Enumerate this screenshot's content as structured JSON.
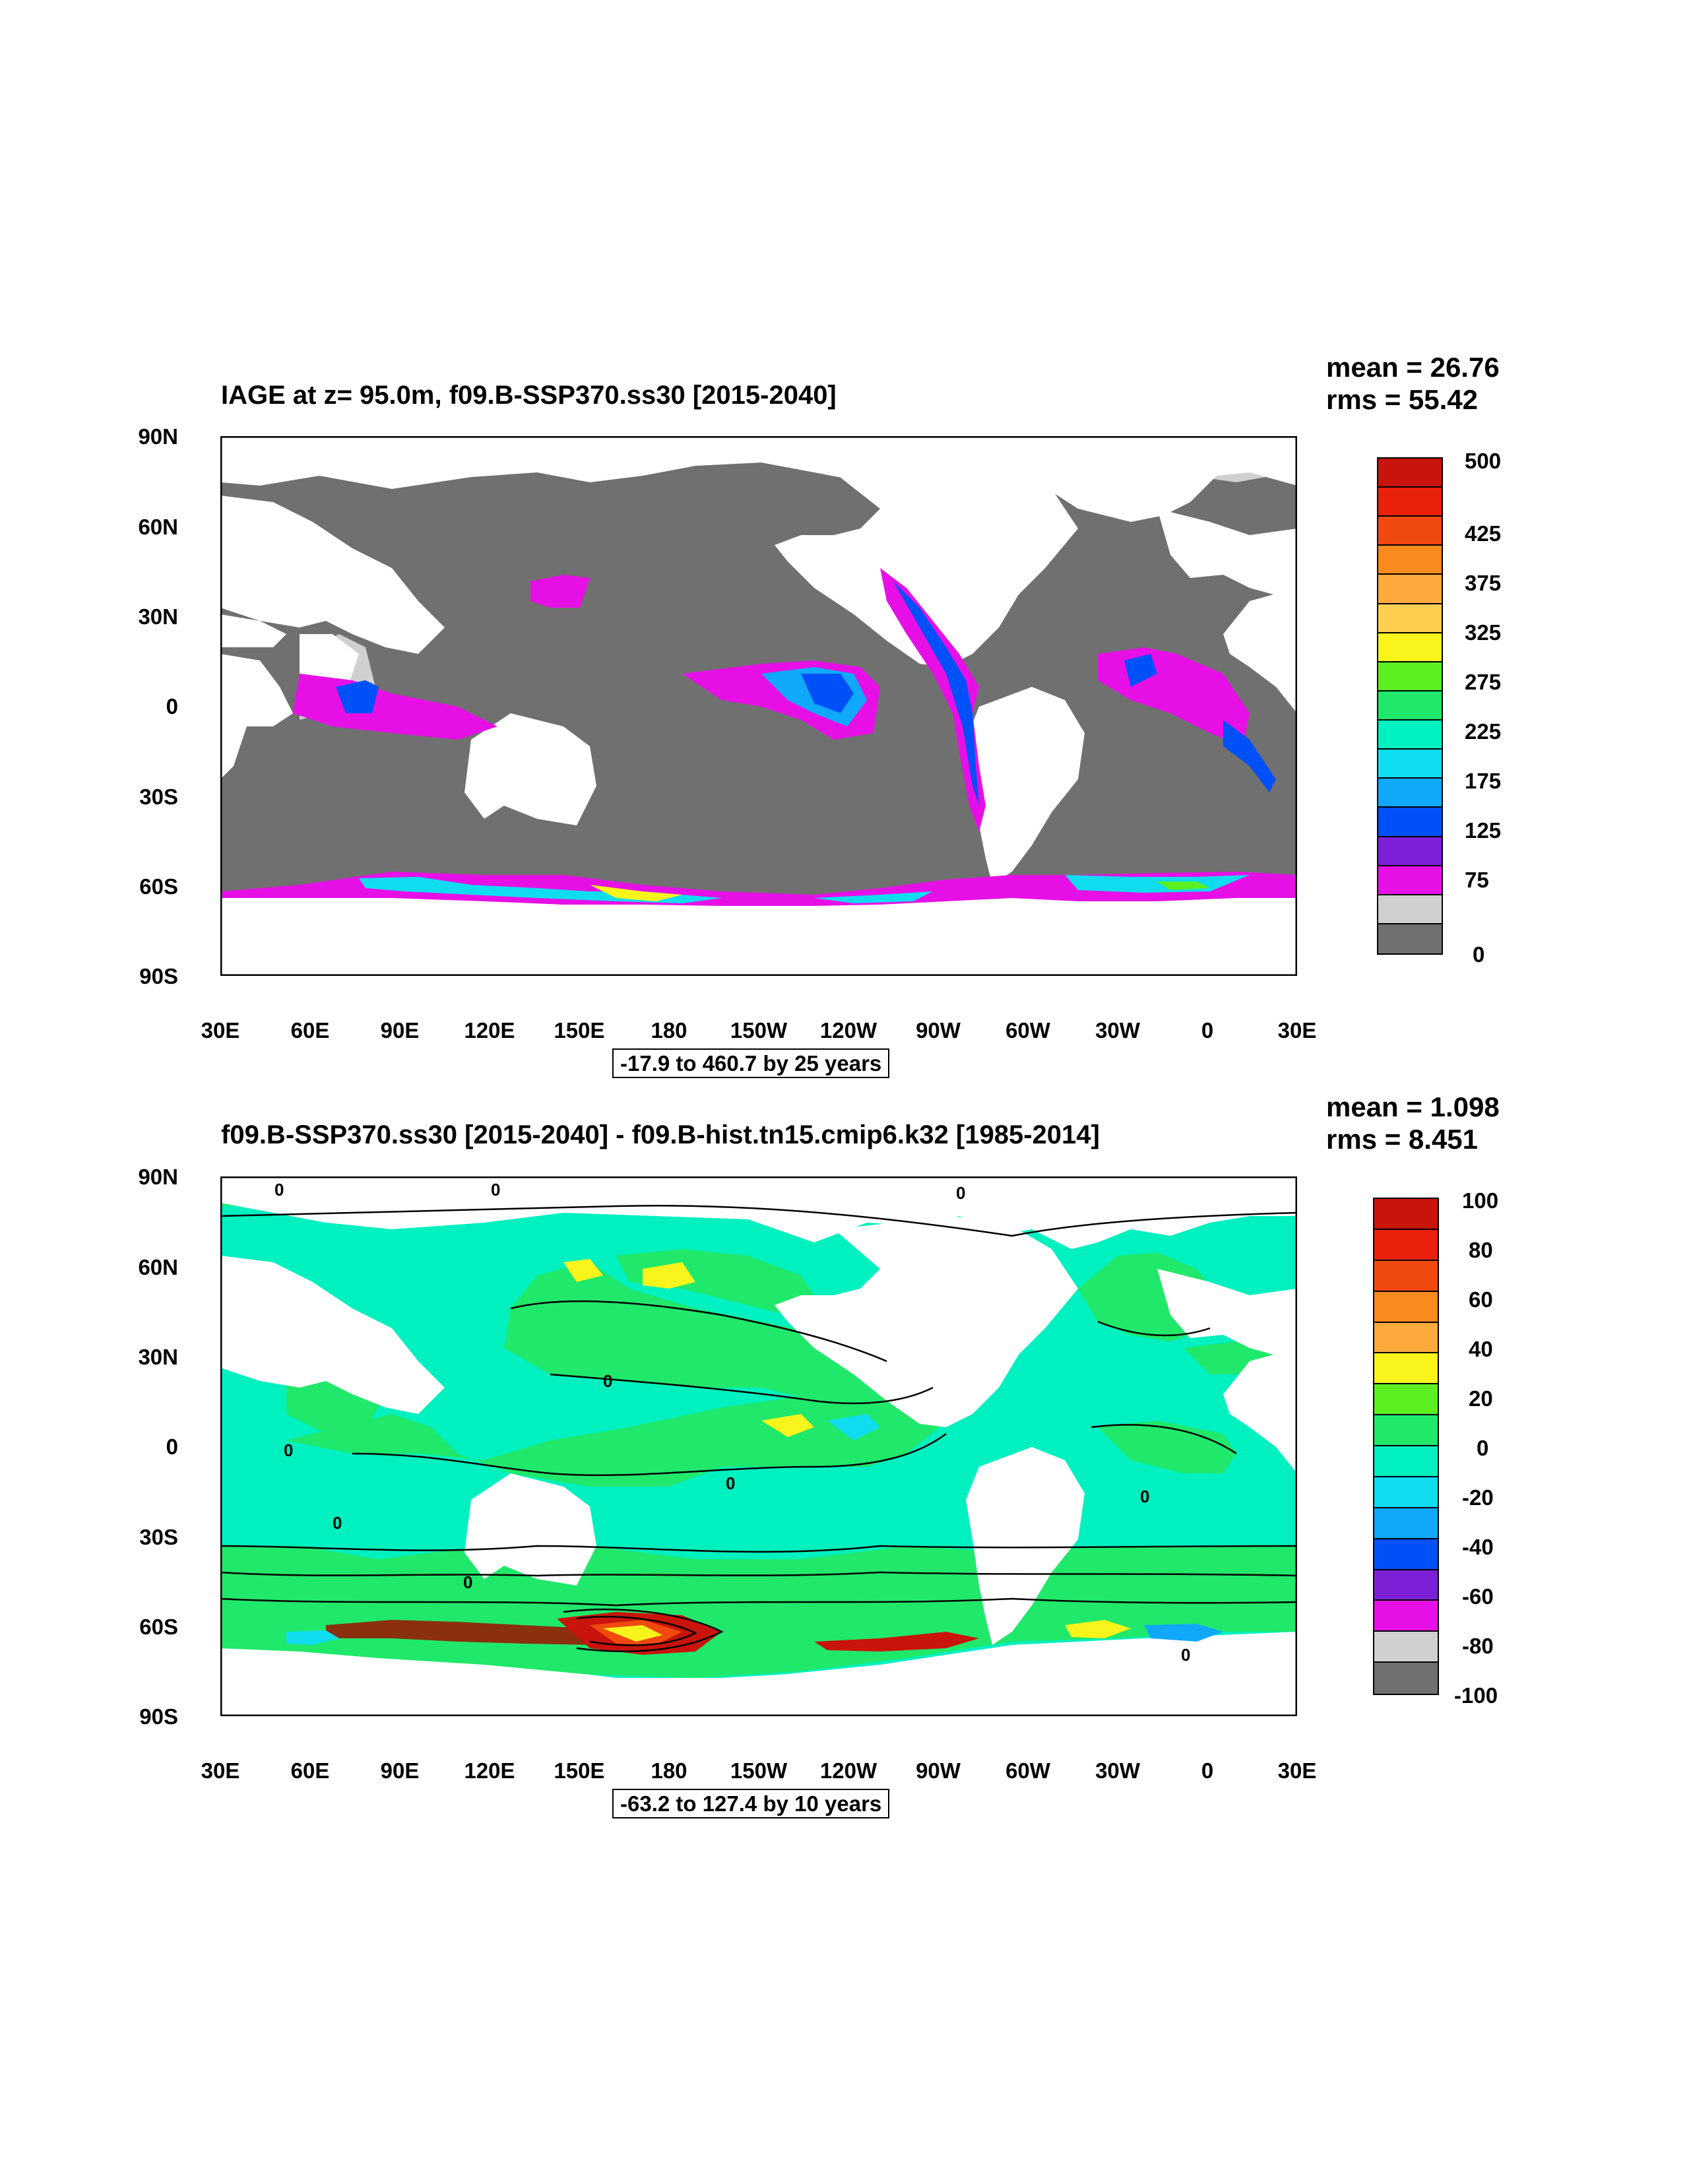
{
  "panels": [
    {
      "title": "IAGE at z=  95.0m, f09.B-SSP370.ss30 [2015-2040]",
      "mean": "mean = 26.76",
      "rms": "rms = 55.42",
      "range_note": "-17.9 to 460.7 by 25 years",
      "lat_labels": [
        "90N",
        "60N",
        "30N",
        "0",
        "30S",
        "60S",
        "90S"
      ],
      "lon_labels": [
        "30E",
        "60E",
        "90E",
        "120E",
        "150E",
        "180",
        "150W",
        "120W",
        "90W",
        "60W",
        "30W",
        "0",
        "30E"
      ],
      "colorbar_labels": [
        "500",
        "425",
        "375",
        "325",
        "275",
        "225",
        "175",
        "125",
        "75",
        "0"
      ],
      "colorbar_colors": [
        "#c8140c",
        "#e8200c",
        "#f04a10",
        "#f88a1e",
        "#fcaa3c",
        "#fcd04e",
        "#f8f41c",
        "#5cf020",
        "#20e86a",
        "#00f0c0",
        "#10dcf0",
        "#10a8f8",
        "#0050f8",
        "#7c20d8",
        "#e610e6",
        "#d0d0d0",
        "#707070"
      ]
    },
    {
      "title": "f09.B-SSP370.ss30 [2015-2040] - f09.B-hist.tn15.cmip6.k32 [1985-2014]",
      "mean": "mean = 1.098",
      "rms": "rms = 8.451",
      "range_note": "-63.2 to 127.4 by 10 years",
      "lat_labels": [
        "90N",
        "60N",
        "30N",
        "0",
        "30S",
        "60S",
        "90S"
      ],
      "lon_labels": [
        "30E",
        "60E",
        "90E",
        "120E",
        "150E",
        "180",
        "150W",
        "120W",
        "90W",
        "60W",
        "30W",
        "0",
        "30E"
      ],
      "colorbar_labels": [
        "100",
        "80",
        "60",
        "40",
        "20",
        "0",
        "-20",
        "-40",
        "-60",
        "-80",
        "-100"
      ],
      "colorbar_colors": [
        "#c8140c",
        "#e8200c",
        "#f04a10",
        "#f88a1e",
        "#fcaa3c",
        "#f8f41c",
        "#5cf020",
        "#20e86a",
        "#00f0c0",
        "#10dcf0",
        "#10a8f8",
        "#0050f8",
        "#7c20d8",
        "#e610e6",
        "#d0d0d0",
        "#707070"
      ],
      "contour_label": "0"
    }
  ]
}
